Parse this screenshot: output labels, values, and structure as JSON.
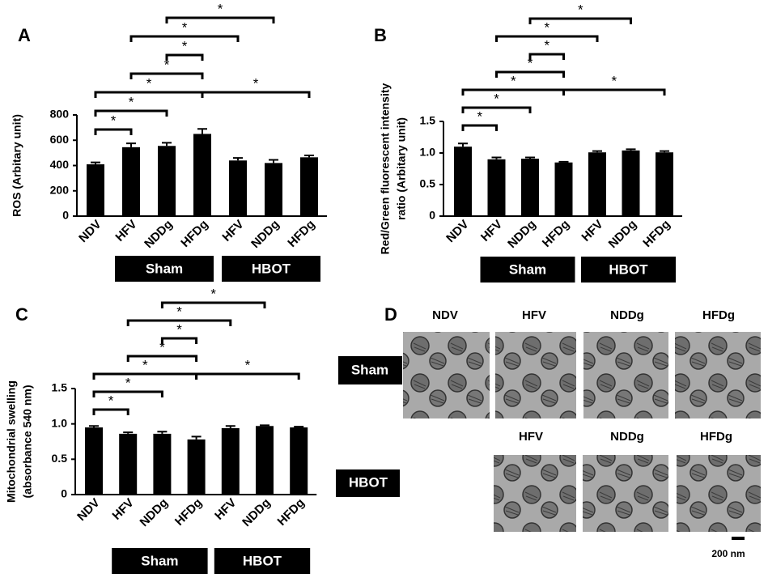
{
  "chart_data": [
    {
      "type": "bar",
      "panel": "A",
      "ylabel": [
        "ROS (Arbitary unit)"
      ],
      "categories": [
        "NDV",
        "HFV",
        "NDDg",
        "HFDg",
        "HFV",
        "NDDg",
        "HFDg"
      ],
      "values": [
        410,
        545,
        555,
        650,
        440,
        420,
        465
      ],
      "errors": [
        15,
        30,
        25,
        40,
        20,
        25,
        15
      ],
      "color": "#000000",
      "ylim": [
        0,
        800
      ],
      "yticks": [
        0,
        200,
        400,
        600,
        800
      ],
      "groups": [
        {
          "label": "Sham",
          "from": 1,
          "to": 3
        },
        {
          "label": "HBOT",
          "from": 4,
          "to": 6
        }
      ],
      "annotations": [
        {
          "text": "*",
          "from": 0,
          "to": 1
        },
        {
          "text": "*",
          "from": 0,
          "to": 2
        },
        {
          "text": "*",
          "from": 0,
          "to": 3
        },
        {
          "text": "*",
          "from": 3,
          "to": 6
        },
        {
          "text": "*",
          "from": 1,
          "to": 3
        },
        {
          "text": "*",
          "from": 2,
          "to": 3
        },
        {
          "text": "*",
          "from": 1,
          "to": 4
        },
        {
          "text": "*",
          "from": 2,
          "to": 5
        }
      ]
    },
    {
      "type": "bar",
      "panel": "B",
      "ylabel": [
        "Red/Green fluorescent intensity",
        "ratio (Arbitary unit)"
      ],
      "categories": [
        "NDV",
        "HFV",
        "NDDg",
        "HFDg",
        "HFV",
        "NDDg",
        "HFDg"
      ],
      "values": [
        1.1,
        0.9,
        0.91,
        0.85,
        1.01,
        1.04,
        1.01
      ],
      "errors": [
        0.05,
        0.03,
        0.02,
        0.01,
        0.02,
        0.02,
        0.02
      ],
      "color": "#000000",
      "ylim": [
        0,
        1.5
      ],
      "yticks": [
        0,
        0.5,
        {
          "value": 1,
          "label": "1.0"
        },
        1.5
      ],
      "groups": [
        {
          "label": "Sham",
          "from": 1,
          "to": 3
        },
        {
          "label": "HBOT",
          "from": 4,
          "to": 6
        }
      ],
      "annotations": [
        {
          "text": "*",
          "from": 0,
          "to": 1
        },
        {
          "text": "*",
          "from": 0,
          "to": 2
        },
        {
          "text": "*",
          "from": 0,
          "to": 3
        },
        {
          "text": "*",
          "from": 3,
          "to": 6
        },
        {
          "text": "*",
          "from": 1,
          "to": 3
        },
        {
          "text": "*",
          "from": 2,
          "to": 3
        },
        {
          "text": "*",
          "from": 1,
          "to": 4
        },
        {
          "text": "*",
          "from": 2,
          "to": 5
        }
      ]
    },
    {
      "type": "bar",
      "panel": "C",
      "ylabel": [
        "Mitochondrial swelling",
        "(absorbance 540 nm)"
      ],
      "categories": [
        "NDV",
        "HFV",
        "NDDg",
        "HFDg",
        "HFV",
        "NDDg",
        "HFDg"
      ],
      "values": [
        0.95,
        0.86,
        0.86,
        0.78,
        0.94,
        0.97,
        0.95
      ],
      "errors": [
        0.02,
        0.02,
        0.03,
        0.04,
        0.03,
        0.01,
        0.01
      ],
      "color": "#000000",
      "ylim": [
        0,
        1.5
      ],
      "yticks": [
        0,
        0.5,
        {
          "value": 1,
          "label": "1.0"
        },
        1.5
      ],
      "groups": [
        {
          "label": "Sham",
          "from": 1,
          "to": 3
        },
        {
          "label": "HBOT",
          "from": 4,
          "to": 6
        }
      ],
      "annotations": [
        {
          "text": "*",
          "from": 0,
          "to": 1
        },
        {
          "text": "*",
          "from": 0,
          "to": 2
        },
        {
          "text": "*",
          "from": 0,
          "to": 3
        },
        {
          "text": "*",
          "from": 3,
          "to": 6
        },
        {
          "text": "*",
          "from": 1,
          "to": 3
        },
        {
          "text": "*",
          "from": 2,
          "to": 3
        },
        {
          "text": "*",
          "from": 1,
          "to": 4
        },
        {
          "text": "*",
          "from": 2,
          "to": 5
        }
      ]
    }
  ],
  "panel_d": {
    "label": "D",
    "columns": [
      "NDV",
      "HFV",
      "NDDg",
      "HFDg"
    ],
    "rows": [
      "Sham",
      "HBOT"
    ],
    "hbot_columns": [
      "HFV",
      "NDDg",
      "HFDg"
    ],
    "scale_bar": "200 nm"
  }
}
